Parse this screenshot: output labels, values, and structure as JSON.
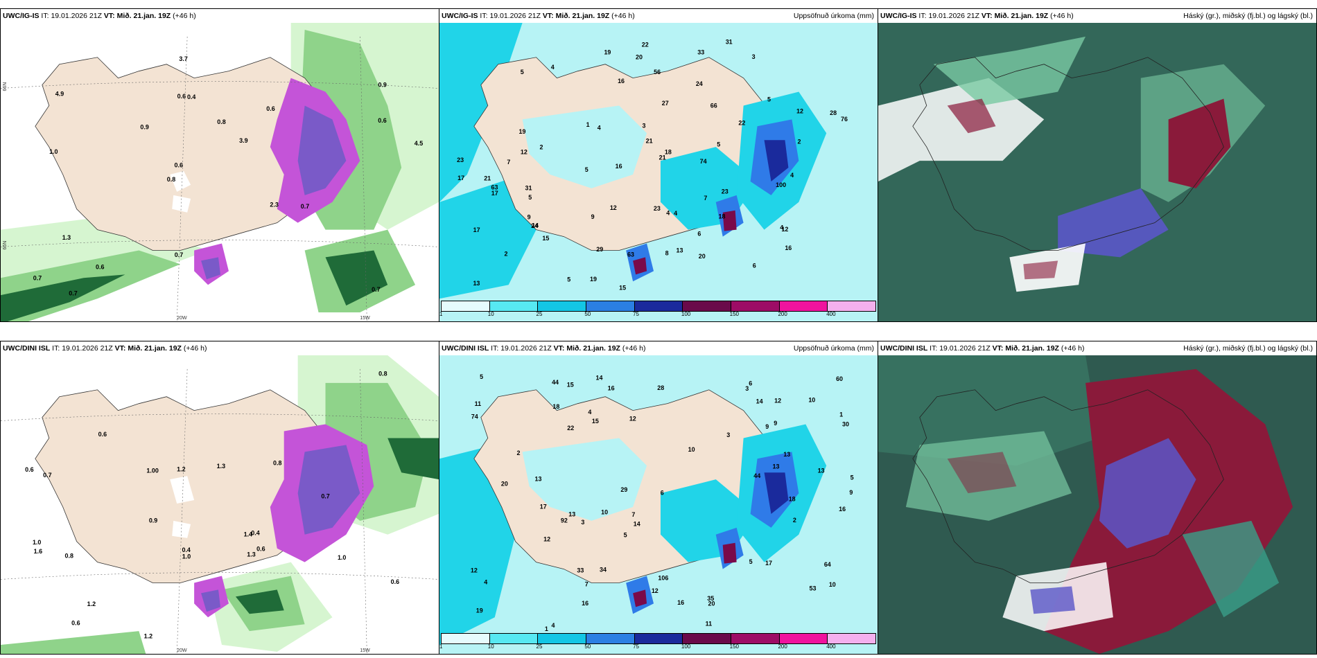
{
  "panels": [
    {
      "model": "UWC/IG-IS",
      "it_label": "IT:",
      "it_value": "19.01.2026 21Z",
      "vt_label": "VT:",
      "vt_value": "Mið. 21.jan. 19Z",
      "lead": "(+46 h)",
      "right_title": "",
      "type": "precip-rate",
      "labels": [
        "0.7",
        "1.0",
        "0.9",
        "0.8",
        "0.6",
        "0.7",
        "0.6",
        "0.8",
        "1.3",
        "0.9",
        "0.7",
        "0.6",
        "0.4",
        "3.9",
        "0.7",
        "4.9",
        "3.7",
        "4.5",
        "2.3",
        "0.6",
        "0.6",
        "0.7"
      ],
      "axis": [
        "20W",
        "15W",
        "66N",
        "65N"
      ]
    },
    {
      "model": "UWC/IG-IS",
      "it_label": "IT:",
      "it_value": "19.01.2026 21Z",
      "vt_label": "VT:",
      "vt_value": "Mið. 21.jan. 19Z",
      "lead": "(+46 h)",
      "right_title": "Uppsöfnuð úrkoma (mm)",
      "type": "accum",
      "labels": [
        "2",
        "3",
        "4",
        "5",
        "4",
        "2",
        "5",
        "14",
        "12",
        "22",
        "21",
        "22",
        "18",
        "21",
        "15",
        "19",
        "16",
        "23",
        "24",
        "19",
        "20",
        "20",
        "16",
        "18",
        "21",
        "29",
        "63",
        "33",
        "27",
        "23",
        "19",
        "15",
        "13",
        "23",
        "12",
        "17",
        "28",
        "74",
        "66",
        "100",
        "76",
        "56",
        "63",
        "31",
        "17",
        "12",
        "7",
        "8",
        "9",
        "6",
        "4",
        "5",
        "3",
        "2",
        "5",
        "4",
        "1",
        "4",
        "5",
        "7",
        "13",
        "31",
        "24",
        "16",
        "12",
        "17",
        "9",
        "5",
        "4",
        "6"
      ],
      "colorbar": [
        "1",
        "10",
        "25",
        "50",
        "75",
        "100",
        "150",
        "200",
        "400"
      ]
    },
    {
      "model": "UWC/IG-IS",
      "it_label": "IT:",
      "it_value": "19.01.2026 21Z",
      "vt_label": "VT:",
      "vt_value": "Mið. 21.jan. 19Z",
      "lead": "(+46 h)",
      "right_title": "Háský (gr.), miðský (fj.bl.) og lágský (bl.)",
      "type": "cloud"
    },
    {
      "model": "UWC/DINI ISL",
      "it_label": "IT:",
      "it_value": "19.01.2026 21Z",
      "vt_label": "VT:",
      "vt_value": "Mið. 21.jan. 19Z",
      "lead": "(+46 h)",
      "right_title": "",
      "type": "precip-rate",
      "labels": [
        "0.6",
        "0.7",
        "0.8",
        "1.3",
        "0.9",
        "1.2",
        "0.7",
        "0.4",
        "1.00",
        "1.3",
        "1.2",
        "0.6",
        "0.8",
        "0.4",
        "1.0",
        "0.6",
        "0.8",
        "1.6",
        "1.2",
        "0.6",
        "1.0",
        "1.4",
        "1.0",
        "0.6"
      ],
      "axis": [
        "20W",
        "15W",
        "66N",
        "65N"
      ]
    },
    {
      "model": "UWC/DINI ISL",
      "it_label": "IT:",
      "it_value": "19.01.2026 21Z",
      "vt_label": "VT:",
      "vt_value": "Mið. 21.jan. 19Z",
      "lead": "(+46 h)",
      "right_title": "Uppsöfnuð úrkoma (mm)",
      "type": "accum",
      "labels": [
        "2",
        "3",
        "4",
        "5",
        "1",
        "12",
        "16",
        "15",
        "19",
        "13",
        "17",
        "13",
        "15",
        "34",
        "28",
        "12",
        "11",
        "12",
        "10",
        "20",
        "44",
        "35",
        "29",
        "12",
        "13",
        "14",
        "16",
        "17",
        "30",
        "20",
        "18",
        "16",
        "22",
        "16",
        "14",
        "9",
        "10",
        "13",
        "64",
        "60",
        "92",
        "74",
        "44",
        "53",
        "106",
        "33",
        "10",
        "11",
        "9",
        "5",
        "6",
        "4",
        "3",
        "2",
        "1",
        "14",
        "18",
        "10",
        "13",
        "7",
        "4",
        "3",
        "5",
        "6",
        "7",
        "9",
        "12",
        "5"
      ],
      "colorbar": [
        "1",
        "10",
        "25",
        "50",
        "75",
        "100",
        "150",
        "200",
        "400"
      ]
    },
    {
      "model": "UWC/DINI ISL",
      "it_label": "IT:",
      "it_value": "19.01.2026 21Z",
      "vt_label": "VT:",
      "vt_value": "Mið. 21.jan. 19Z",
      "lead": "(+46 h)",
      "right_title": "Háský (gr.), miðský (fj.bl.) og lágský (bl.)",
      "type": "cloud"
    }
  ],
  "colors": {
    "land": "#f3e3d3",
    "sea_white": "#ffffff",
    "precip_light": "#d6f5d0",
    "precip_mid": "#8fd38a",
    "precip_dark": "#1f6b38",
    "precip_purple": "#c454d8",
    "precip_violet": "#7a5ac8",
    "accum_cyan_light": "#b7f3f5",
    "accum_cyan": "#21d4e8",
    "accum_blue": "#2f7be8",
    "accum_navy": "#1a2a9c",
    "accum_maroon": "#7a0a4a",
    "accum_magenta": "#ff1aa8",
    "cloud_dark": "#2f5a50",
    "cloud_teal": "#3a9e88",
    "cloud_green": "#79c9a3",
    "cloud_red": "#8a1a3a",
    "cloud_blue": "#5a56c8"
  },
  "colorbar_colors": [
    "#e6fbfd",
    "#57e8f2",
    "#13c6e5",
    "#2b7fe3",
    "#1a2a9c",
    "#6a0a4a",
    "#9d0c66",
    "#f0139e",
    "#f4b0ee"
  ]
}
